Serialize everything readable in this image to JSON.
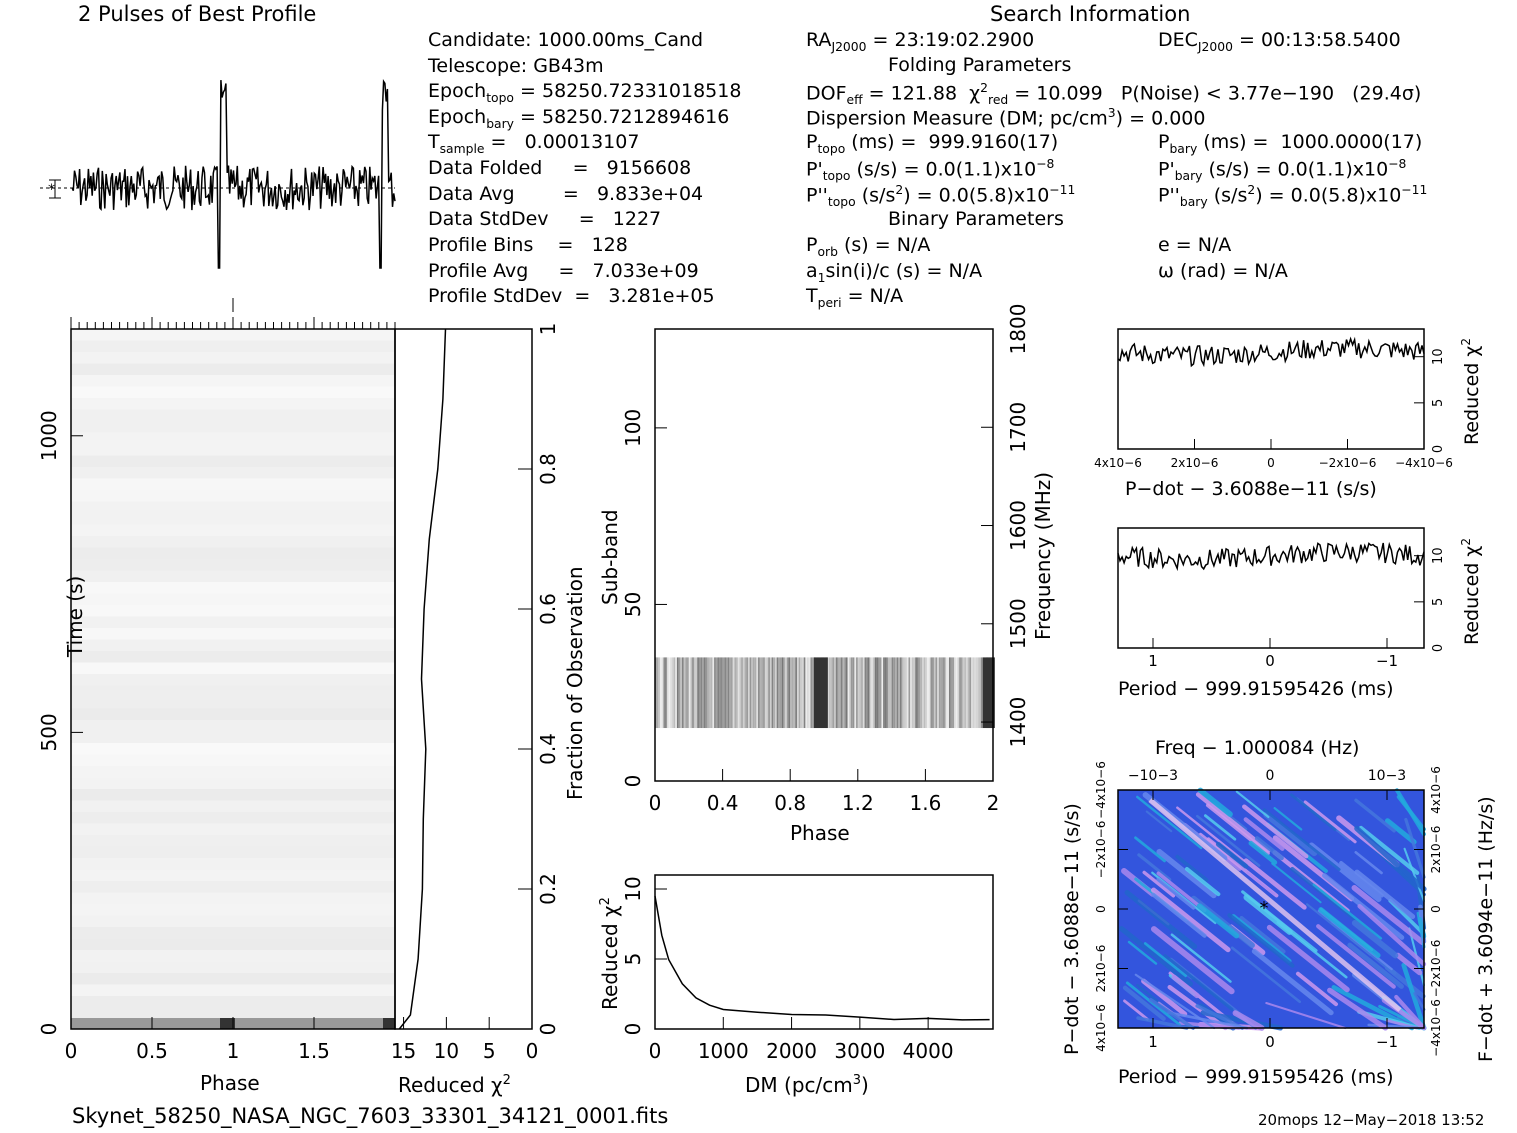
{
  "header": {
    "title": "2 Pulses of Best Profile",
    "search_title": "Search Information"
  },
  "info": {
    "candidate": "Candidate:  1000.00ms_Cand",
    "telescope": "Telescope:  GB43m",
    "epoch_topo": "Epoch",
    "epoch_topo_sub": "topo",
    "epoch_topo_val": "= 58250.72331018518",
    "epoch_bary": "Epoch",
    "epoch_bary_sub": "bary",
    "epoch_bary_val": "= 58250.7212894616",
    "t_sample": "T",
    "t_sample_sub": "sample",
    "t_sample_val": "=   0.00013107",
    "data_folded": "Data Folded     =   9156608",
    "data_avg": "Data Avg        =   9.833e+04",
    "data_std": "Data StdDev     =   1227",
    "profile_bins": "Profile Bins    =   128",
    "profile_avg": "Profile Avg     =   7.033e+09",
    "profile_std": "Profile StdDev  =   3.281e+05"
  },
  "search": {
    "ra": "RA",
    "ra_sub": "J2000",
    "ra_val": " = 23:19:02.2900",
    "dec": "DEC",
    "dec_sub": "J2000",
    "dec_val": " = 00:13:58.5400",
    "folding": "Folding Parameters",
    "dof": "DOF",
    "dof_sub": "eff",
    "dof_val": " = 121.88  χ",
    "chi_sup": "2",
    "chi_sub": "red",
    "chi_val": " = 10.099   P(Noise) < 3.77e−190   (29.4σ)",
    "dm_line": "Dispersion Measure (DM; pc/cm",
    "dm_sup": "3",
    "dm_val": ") = 0.000",
    "ptopo": "P",
    "ptopo_sub": "topo",
    "ptopo_val": " (ms) =  999.9160(17)",
    "pbary": "P",
    "pbary_sub": "bary",
    "pbary_val": " (ms) =  1000.0000(17)",
    "pdtopo": "P'",
    "pdtopo_sub": "topo",
    "pdtopo_val": " (s/s) = 0.0(1.1)x10",
    "pdtopo_exp": "−8",
    "pdbary": "P'",
    "pdbary_sub": "bary",
    "pdbary_val": " (s/s) = 0.0(1.1)x10",
    "pdbary_exp": "−8",
    "pddtopo": "P''",
    "pddtopo_sub": "topo",
    "pddtopo_val": " (s/s",
    "pddtopo_val2": ") = 0.0(5.8)x10",
    "pddtopo_exp": "−11",
    "pddbary": "P''",
    "pddbary_sub": "bary",
    "pddbary_val": " (s/s",
    "pddbary_val2": ") = 0.0(5.8)x10",
    "pddbary_exp": "−11",
    "binary": "Binary Parameters",
    "porb": "P",
    "porb_sub": "orb",
    "porb_val": " (s) = N/A",
    "e": "e = N/A",
    "a1": "a",
    "a1_sub": "1",
    "a1_val": "sin(i)/c (s) = N/A",
    "omega": "ω (rad) = N/A",
    "tperi": "T",
    "tperi_sub": "peri",
    "tperi_val": " = N/A"
  },
  "footer": {
    "filename": "Skynet_58250_NASA_NGC_7603_33301_34121_0001.fits",
    "stamp": "20mops 12−May−2018 13:52"
  },
  "chart_data": [
    {
      "type": "line",
      "title": "2 Pulses of Best Profile",
      "x_range": [
        0,
        2
      ],
      "note_shape": "sharp peaks near phase 0.95 and 1.95"
    },
    {
      "type": "heatmap",
      "xlabel": "Phase",
      "ylabel": "Time (s)",
      "x_ticks": [
        "0",
        "0.5",
        "1",
        "1.5"
      ],
      "y_ticks": [
        "0",
        "500",
        "1000"
      ],
      "xlim": [
        0,
        2
      ],
      "ylim": [
        0,
        1180
      ]
    },
    {
      "type": "line",
      "xlabel": "Reduced χ2",
      "ylabel": "Fraction of Observation",
      "x_ticks": [
        "15",
        "10",
        "5",
        "0"
      ],
      "y_ticks": [
        "0",
        "0.2",
        "0.4",
        "0.6",
        "0.8",
        "1"
      ],
      "points": [
        [
          15.5,
          0.0
        ],
        [
          14.2,
          0.02
        ],
        [
          13.3,
          0.1
        ],
        [
          12.8,
          0.2
        ],
        [
          12.7,
          0.3
        ],
        [
          12.4,
          0.4
        ],
        [
          12.9,
          0.5
        ],
        [
          12.6,
          0.6
        ],
        [
          12.0,
          0.7
        ],
        [
          11.0,
          0.8
        ],
        [
          10.4,
          0.9
        ],
        [
          10.1,
          1.0
        ]
      ]
    },
    {
      "type": "heatmap",
      "xlabel": "Phase",
      "ylabel": "Sub-band",
      "y2label": "Frequency (MHz)",
      "x_ticks": [
        "0",
        "0.4",
        "0.8",
        "1.2",
        "1.6",
        "2"
      ],
      "y_ticks": [
        "0",
        "50",
        "100"
      ],
      "y2_ticks": [
        "1400",
        "1500",
        "1600",
        "1700",
        "1800"
      ],
      "band_rows": [
        15,
        35
      ]
    },
    {
      "type": "line",
      "xlabel": "DM (pc/cm3)",
      "ylabel": "Reduced χ2",
      "x_ticks": [
        "0",
        "1000",
        "2000",
        "3000",
        "4000"
      ],
      "y_ticks": [
        "0",
        "5",
        "10"
      ],
      "points": [
        [
          0,
          9.5
        ],
        [
          100,
          6.8
        ],
        [
          200,
          5.0
        ],
        [
          400,
          3.3
        ],
        [
          600,
          2.3
        ],
        [
          800,
          1.8
        ],
        [
          1000,
          1.5
        ],
        [
          1500,
          1.3
        ],
        [
          2000,
          1.1
        ],
        [
          2500,
          1.0
        ],
        [
          3000,
          0.9
        ],
        [
          3500,
          0.8
        ],
        [
          4000,
          0.7
        ],
        [
          4500,
          0.75
        ],
        [
          4900,
          0.8
        ]
      ]
    },
    {
      "type": "line",
      "xlabel": "P−dot − 3.6088e−11 (s/s)",
      "ylabel": "Reduced χ2",
      "x_ticks": [
        "4x10−6",
        "2x10−6",
        "0",
        "−2x10−6",
        "−4x10−6"
      ],
      "y_ticks": [
        "0",
        "5",
        "10"
      ],
      "level": 10.5
    },
    {
      "type": "line",
      "xlabel": "Period − 999.91595426 (ms)",
      "ylabel": "Reduced χ2",
      "x_ticks": [
        "1",
        "0",
        "−1"
      ],
      "y_ticks": [
        "0",
        "5",
        "10"
      ],
      "level": 10.0
    },
    {
      "type": "heatmap",
      "title": "Freq − 1.000084 (Hz)",
      "xlabel": "Period − 999.91595426 (ms)",
      "ylabel": "P−dot − 3.6088e−11 (s/s)",
      "y2label": "F−dot + 3.6094e−11 (Hz/s)",
      "x_ticks": [
        "1",
        "0",
        "−1"
      ],
      "top_ticks": [
        "−10−3",
        "0",
        "10−3"
      ],
      "y_ticks": [
        "4x10−6",
        "2x10−6",
        "0",
        "−2x10−6",
        "−4x10−6"
      ],
      "y2_ticks": [
        "−4x10−6",
        "−2x10−6",
        "0",
        "2x10−6",
        "4x10−6"
      ]
    }
  ]
}
